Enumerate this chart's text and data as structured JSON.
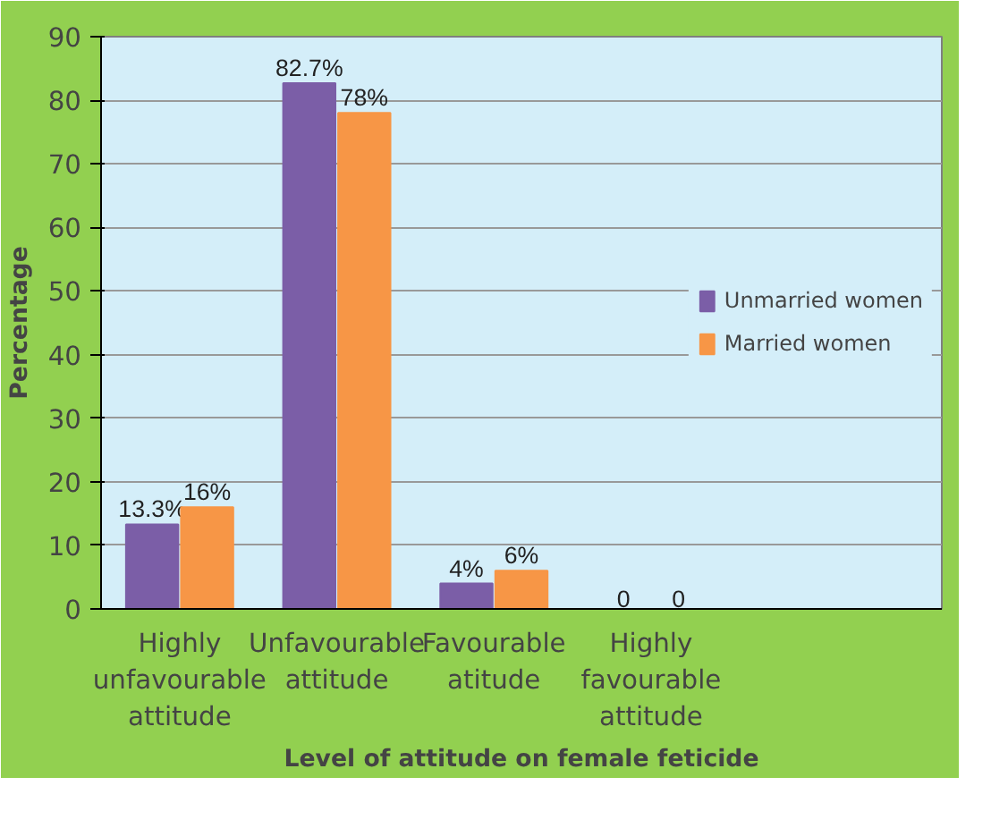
{
  "chart_data": {
    "type": "bar",
    "xlabel": "Level of attitude on female feticide",
    "ylabel": "Percentage",
    "categories": [
      "Highly\nunfavourable\nattitude",
      "Unfavourable\nattitude",
      "Favourable\natitude",
      "Highly\nfavourable\nattitude"
    ],
    "series": [
      {
        "name": "Unmarried women",
        "color": "#7b5ea7",
        "values": [
          13.3,
          82.7,
          4,
          0
        ],
        "value_labels": [
          "13.3%",
          "82.7%",
          "4%",
          "0"
        ]
      },
      {
        "name": "Married women",
        "color": "#f79646",
        "values": [
          16,
          78,
          6,
          0
        ],
        "value_labels": [
          "16%",
          "78%",
          "6%",
          "0"
        ]
      }
    ],
    "ylim": [
      0,
      90
    ],
    "yticks": [
      0,
      10,
      20,
      30,
      40,
      50,
      60,
      70,
      80,
      90
    ],
    "grid": "y",
    "legend": "right"
  }
}
